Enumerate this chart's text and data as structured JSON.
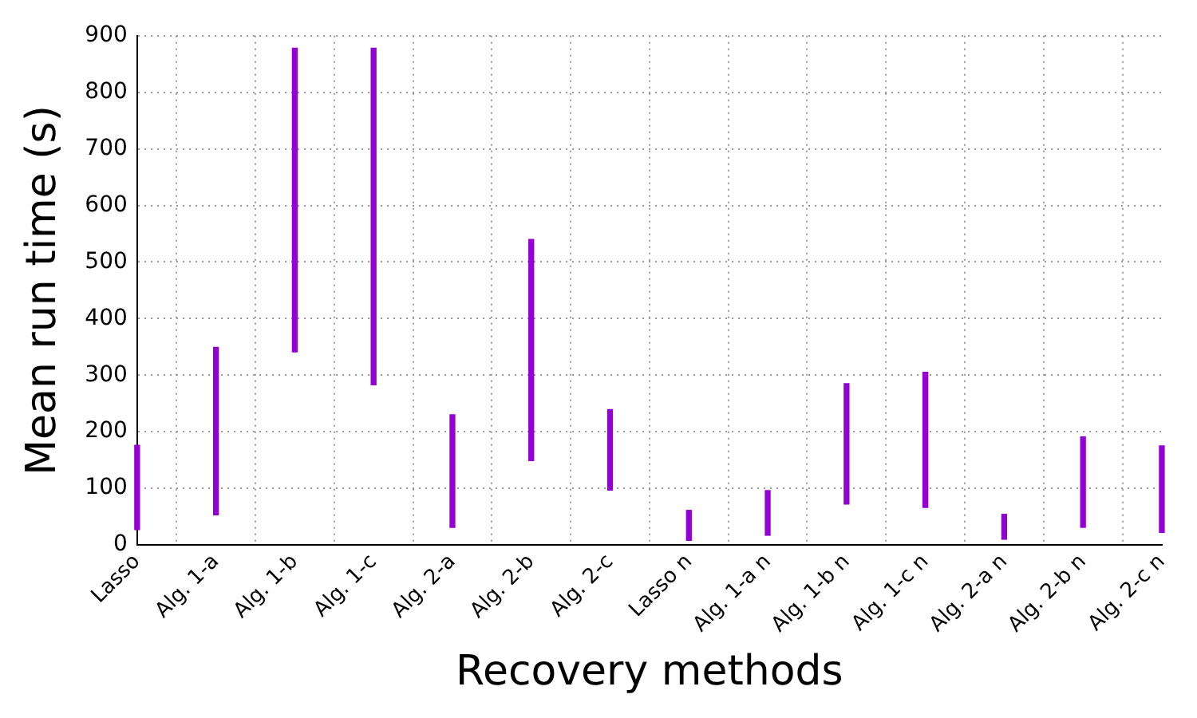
{
  "chart_data": {
    "type": "bar",
    "xlabel": "Recovery methods",
    "ylabel": "Mean run time (s)",
    "categories": [
      "Lasso",
      "Alg. 1-a",
      "Alg. 1-b",
      "Alg. 1-c",
      "Alg. 2-a",
      "Alg. 2-b",
      "Alg. 2-c",
      "Lasso n",
      "Alg. 1-a n",
      "Alg. 1-b n",
      "Alg. 1-c n",
      "Alg. 2-a n",
      "Alg. 2-b n",
      "Alg. 2-c n"
    ],
    "base": [
      27,
      53,
      341,
      283,
      31,
      149,
      97,
      8,
      17,
      72,
      66,
      10,
      31,
      22
    ],
    "values": [
      149,
      296,
      537,
      595,
      199,
      391,
      142,
      53,
      79,
      213,
      239,
      44,
      160,
      153
    ],
    "color": "#9400d3",
    "ylim": [
      0,
      900
    ],
    "yticks": [
      0,
      100,
      200,
      300,
      400,
      500,
      600,
      700,
      800,
      900
    ],
    "grid": true
  }
}
